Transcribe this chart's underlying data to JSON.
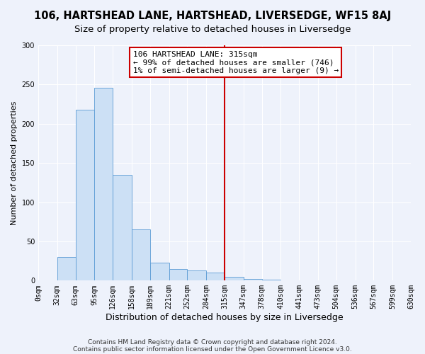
{
  "title": "106, HARTSHEAD LANE, HARTSHEAD, LIVERSEDGE, WF15 8AJ",
  "subtitle": "Size of property relative to detached houses in Liversedge",
  "xlabel": "Distribution of detached houses by size in Liversedge",
  "ylabel": "Number of detached properties",
  "bar_values": [
    0,
    30,
    218,
    246,
    135,
    65,
    23,
    15,
    13,
    10,
    5,
    2,
    1,
    0,
    0,
    0,
    0,
    0,
    0,
    0
  ],
  "bin_edges": [
    0,
    32,
    63,
    95,
    126,
    158,
    189,
    221,
    252,
    284,
    315,
    347,
    378,
    410,
    441,
    473,
    504,
    536,
    567,
    599,
    630
  ],
  "tick_labels": [
    "0sqm",
    "32sqm",
    "63sqm",
    "95sqm",
    "126sqm",
    "158sqm",
    "189sqm",
    "221sqm",
    "252sqm",
    "284sqm",
    "315sqm",
    "347sqm",
    "378sqm",
    "410sqm",
    "441sqm",
    "473sqm",
    "504sqm",
    "536sqm",
    "567sqm",
    "599sqm",
    "630sqm"
  ],
  "bar_color": "#cce0f5",
  "bar_edge_color": "#5b9bd5",
  "vline_x": 315,
  "vline_color": "#cc0000",
  "annotation_line1": "106 HARTSHEAD LANE: 315sqm",
  "annotation_line2": "← 99% of detached houses are smaller (746)",
  "annotation_line3": "1% of semi-detached houses are larger (9) →",
  "annotation_box_edgecolor": "#cc0000",
  "ylim": [
    0,
    300
  ],
  "yticks": [
    0,
    50,
    100,
    150,
    200,
    250,
    300
  ],
  "background_color": "#eef2fb",
  "grid_color": "#ffffff",
  "footer_line1": "Contains HM Land Registry data © Crown copyright and database right 2024.",
  "footer_line2": "Contains public sector information licensed under the Open Government Licence v3.0.",
  "title_fontsize": 10.5,
  "subtitle_fontsize": 9.5,
  "xlabel_fontsize": 9,
  "ylabel_fontsize": 8,
  "tick_fontsize": 7,
  "annotation_fontsize": 8,
  "footer_fontsize": 6.5
}
